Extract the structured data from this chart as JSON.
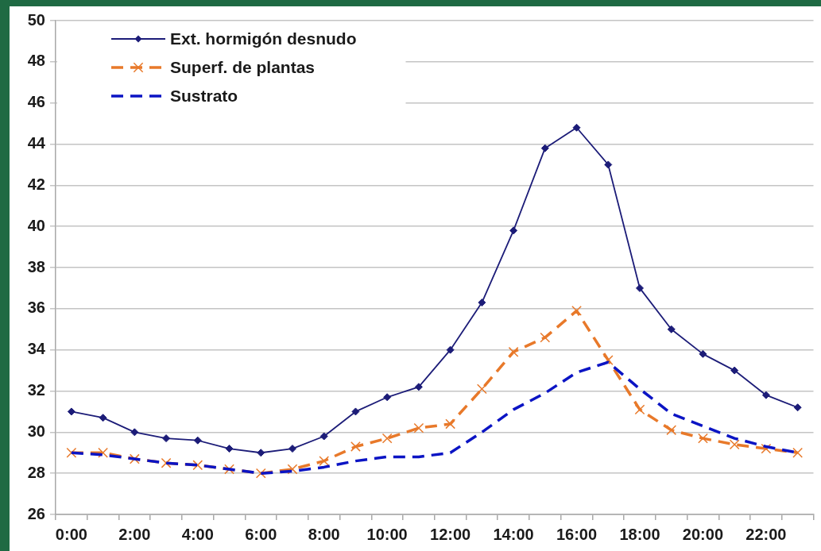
{
  "chart_data": {
    "type": "line",
    "categories": [
      "0:00",
      null,
      "2:00",
      null,
      "4:00",
      null,
      "6:00",
      null,
      "8:00",
      null,
      "10:00",
      null,
      "12:00",
      null,
      "14:00",
      null,
      "16:00",
      null,
      "18:00",
      null,
      "20:00",
      null,
      "22:00",
      null
    ],
    "series": [
      {
        "name": "Ext. hormigón desnudo",
        "color": "#1c1c78",
        "marker": "diamond",
        "line_style": "solid",
        "values": [
          31.0,
          30.7,
          30.0,
          29.7,
          29.6,
          29.2,
          29.0,
          29.2,
          29.8,
          31.0,
          31.7,
          32.2,
          34.0,
          36.3,
          39.8,
          43.8,
          44.8,
          43.0,
          37.0,
          35.0,
          33.8,
          33.0,
          31.8,
          31.2
        ]
      },
      {
        "name": "Superf. de plantas",
        "color": "#e8792a",
        "marker": "cross",
        "line_style": "dashed",
        "values": [
          29.0,
          29.0,
          28.7,
          28.5,
          28.4,
          28.2,
          28.0,
          28.2,
          28.6,
          29.3,
          29.7,
          30.2,
          30.4,
          32.1,
          33.9,
          34.6,
          35.9,
          33.5,
          31.1,
          30.1,
          29.7,
          29.4,
          29.2,
          29.0
        ]
      },
      {
        "name": "Sustrato",
        "color": "#0b14c4",
        "marker": "none",
        "line_style": "dashed",
        "values": [
          29.0,
          28.9,
          28.7,
          28.5,
          28.4,
          28.2,
          28.0,
          28.1,
          28.3,
          28.6,
          28.8,
          28.8,
          29.0,
          30.0,
          31.1,
          31.9,
          32.9,
          33.4,
          32.1,
          30.9,
          30.3,
          29.7,
          29.3,
          29.0
        ]
      }
    ],
    "ylim": [
      26,
      50
    ],
    "yticks": [
      26,
      28,
      30,
      32,
      34,
      36,
      38,
      40,
      42,
      44,
      46,
      48,
      50
    ],
    "grid": "y",
    "legend": "top left"
  }
}
